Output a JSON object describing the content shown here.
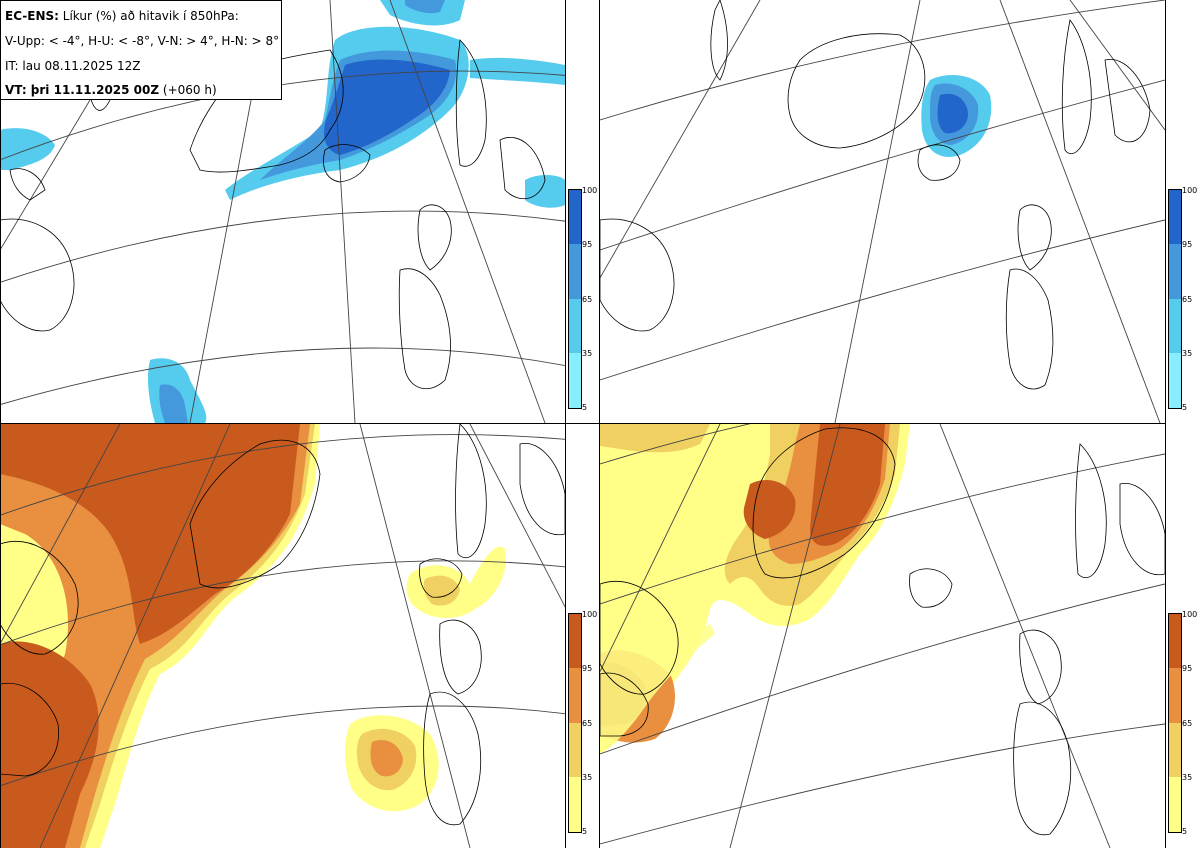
{
  "header": {
    "line1_bold": "EC-ENS:",
    "line1_rest": " Líkur (%) að hitavik í 850hPa:",
    "line2": "V-Upp: < -4°, H-U: < -8°, V-N: > 4°, H-N: > 8°",
    "line3": "IT: lau 08.11.2025 12Z",
    "line4_bold": "VT: þri 11.11.2025 00Z",
    "line4_rest": " (+060 h)"
  },
  "panels": [
    {
      "id": "top-left",
      "label": "V-Upp",
      "scheme": "blue"
    },
    {
      "id": "top-right",
      "label": "H-U",
      "scheme": "blue"
    },
    {
      "id": "bottom-left",
      "label": "V-N",
      "scheme": "orange"
    },
    {
      "id": "bottom-right",
      "label": "H-N",
      "scheme": "orange"
    }
  ],
  "legend": {
    "ticks": [
      "100",
      "95",
      "65",
      "35",
      "5"
    ],
    "blue_colors": [
      "#2266cc",
      "#4499dd",
      "#55ccee",
      "#88eeff"
    ],
    "orange_colors": [
      "#c85a1e",
      "#e89040",
      "#f0d060",
      "#ffff88"
    ]
  },
  "colors": {
    "coast": "#000000",
    "grid": "#444444"
  }
}
